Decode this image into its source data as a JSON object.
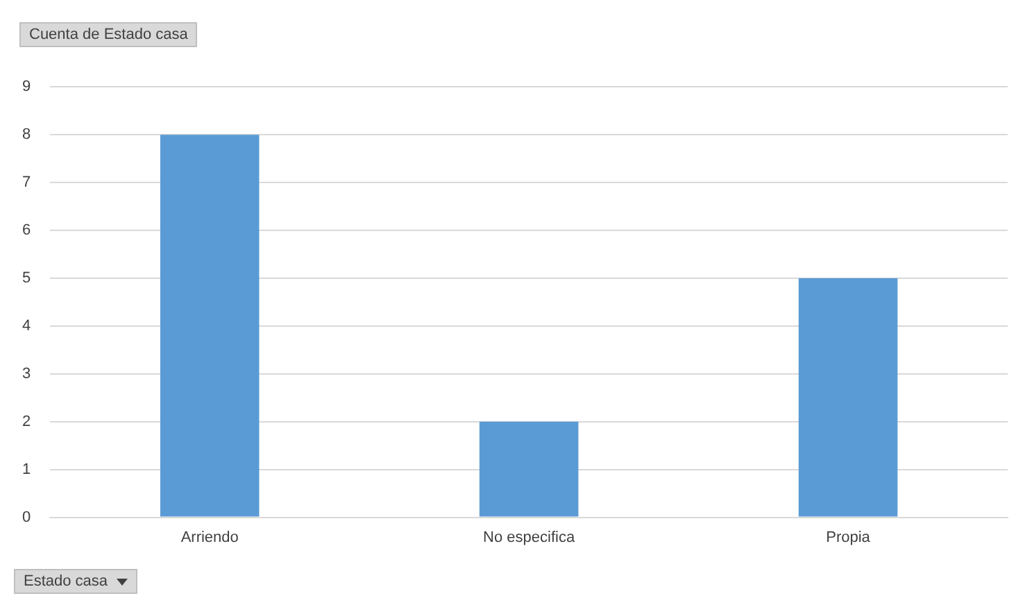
{
  "chart_data": {
    "type": "bar",
    "ylabel": "Cuenta de Estado casa",
    "xlabel": "Estado casa",
    "categories": [
      "Arriendo",
      "No especifica",
      "Propia"
    ],
    "values": [
      8,
      2,
      5
    ],
    "color": "#5b9bd5",
    "ylim": [
      0,
      9
    ],
    "yticks": [
      0,
      1,
      2,
      3,
      4,
      5,
      6,
      7,
      8,
      9
    ],
    "grid": "y",
    "legend": false
  }
}
